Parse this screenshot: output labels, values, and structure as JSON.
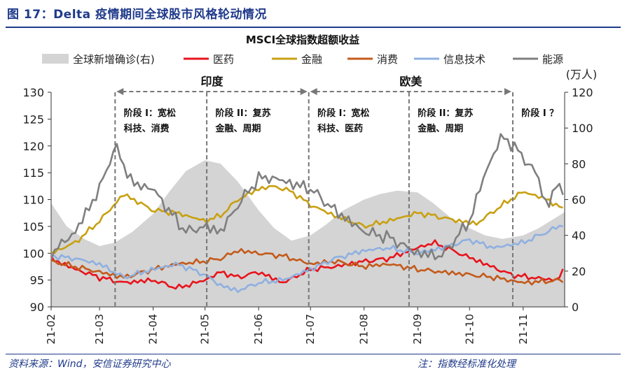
{
  "figure": {
    "title": "图 17：Delta 疫情期间全球股市风格轮动情况",
    "source": "资料来源：Wind，安信证券研究中心",
    "note": "注：指数经标准化处理"
  },
  "chart_data": {
    "type": "line",
    "title": "MSCI全球指数超额收益",
    "y_left": {
      "min": 90,
      "max": 130,
      "ticks": [
        90,
        95,
        100,
        105,
        110,
        115,
        120,
        125,
        130
      ]
    },
    "y_right": {
      "min": 0,
      "max": 120,
      "ticks": [
        0,
        20,
        40,
        60,
        80,
        100,
        120
      ],
      "unit": "(万人)"
    },
    "x_labels": [
      "21-02",
      "21-03",
      "21-04",
      "21-05",
      "21-06",
      "21-07",
      "21-08",
      "21-09",
      "21-10",
      "21-11"
    ],
    "x_start": "2021-02-01",
    "x_end": "2021-11-25",
    "series": [
      {
        "name": "全球新增确诊(右)",
        "type": "area",
        "axis": "right",
        "color": "#d4d4d4",
        "points": [
          [
            "2021-02-01",
            58
          ],
          [
            "2021-02-10",
            45
          ],
          [
            "2021-02-20",
            38
          ],
          [
            "2021-03-01",
            34
          ],
          [
            "2021-03-10",
            36
          ],
          [
            "2021-03-20",
            42
          ],
          [
            "2021-04-01",
            52
          ],
          [
            "2021-04-10",
            64
          ],
          [
            "2021-04-20",
            76
          ],
          [
            "2021-05-01",
            82
          ],
          [
            "2021-05-10",
            80
          ],
          [
            "2021-05-20",
            70
          ],
          [
            "2021-06-01",
            54
          ],
          [
            "2021-06-10",
            44
          ],
          [
            "2021-06-20",
            37
          ],
          [
            "2021-07-01",
            40
          ],
          [
            "2021-07-10",
            46
          ],
          [
            "2021-07-20",
            54
          ],
          [
            "2021-08-01",
            60
          ],
          [
            "2021-08-10",
            63
          ],
          [
            "2021-08-20",
            65
          ],
          [
            "2021-09-01",
            64
          ],
          [
            "2021-09-10",
            58
          ],
          [
            "2021-09-20",
            50
          ],
          [
            "2021-10-01",
            44
          ],
          [
            "2021-10-10",
            40
          ],
          [
            "2021-10-20",
            38
          ],
          [
            "2021-11-01",
            40
          ],
          [
            "2021-11-10",
            44
          ],
          [
            "2021-11-20",
            50
          ],
          [
            "2021-11-25",
            53
          ]
        ]
      },
      {
        "name": "医药",
        "type": "line",
        "axis": "left",
        "color": "#e8141c",
        "points": [
          [
            "2021-02-01",
            99
          ],
          [
            "2021-02-15",
            97
          ],
          [
            "2021-03-01",
            95.5
          ],
          [
            "2021-03-15",
            94.5
          ],
          [
            "2021-04-01",
            95
          ],
          [
            "2021-04-15",
            93.5
          ],
          [
            "2021-05-01",
            95
          ],
          [
            "2021-05-10",
            96.5
          ],
          [
            "2021-05-20",
            95.5
          ],
          [
            "2021-06-01",
            96.5
          ],
          [
            "2021-06-15",
            94.5
          ],
          [
            "2021-07-01",
            97
          ],
          [
            "2021-07-15",
            97.5
          ],
          [
            "2021-08-01",
            98.5
          ],
          [
            "2021-08-15",
            99
          ],
          [
            "2021-09-01",
            101
          ],
          [
            "2021-09-10",
            102
          ],
          [
            "2021-09-25",
            100
          ],
          [
            "2021-10-10",
            98
          ],
          [
            "2021-10-25",
            96
          ],
          [
            "2021-11-05",
            95.5
          ],
          [
            "2021-11-20",
            95
          ],
          [
            "2021-11-25",
            97
          ]
        ]
      },
      {
        "name": "金融",
        "type": "line",
        "axis": "left",
        "color": "#c8a011",
        "points": [
          [
            "2021-02-01",
            100
          ],
          [
            "2021-02-15",
            102
          ],
          [
            "2021-03-01",
            106
          ],
          [
            "2021-03-15",
            111
          ],
          [
            "2021-04-01",
            108
          ],
          [
            "2021-04-15",
            107.5
          ],
          [
            "2021-05-01",
            106
          ],
          [
            "2021-05-10",
            107
          ],
          [
            "2021-05-20",
            110
          ],
          [
            "2021-06-01",
            112
          ],
          [
            "2021-06-10",
            112.5
          ],
          [
            "2021-06-20",
            111.5
          ],
          [
            "2021-07-01",
            109
          ],
          [
            "2021-07-15",
            107
          ],
          [
            "2021-08-01",
            105
          ],
          [
            "2021-08-15",
            106
          ],
          [
            "2021-09-01",
            107.5
          ],
          [
            "2021-09-10",
            107
          ],
          [
            "2021-09-25",
            106
          ],
          [
            "2021-10-05",
            105.5
          ],
          [
            "2021-10-20",
            109
          ],
          [
            "2021-11-01",
            111.5
          ],
          [
            "2021-11-15",
            110
          ],
          [
            "2021-11-25",
            108
          ]
        ]
      },
      {
        "name": "消费",
        "type": "line",
        "axis": "left",
        "color": "#c45a1a",
        "points": [
          [
            "2021-02-01",
            98.5
          ],
          [
            "2021-02-15",
            97.5
          ],
          [
            "2021-03-01",
            96.5
          ],
          [
            "2021-03-15",
            95.5
          ],
          [
            "2021-04-01",
            97
          ],
          [
            "2021-04-15",
            98
          ],
          [
            "2021-05-01",
            98.5
          ],
          [
            "2021-05-10",
            99
          ],
          [
            "2021-05-20",
            100.5
          ],
          [
            "2021-06-01",
            100
          ],
          [
            "2021-06-15",
            99.5
          ],
          [
            "2021-07-01",
            98
          ],
          [
            "2021-07-15",
            98.5
          ],
          [
            "2021-08-01",
            97.5
          ],
          [
            "2021-08-15",
            98
          ],
          [
            "2021-09-01",
            97
          ],
          [
            "2021-09-15",
            96.5
          ],
          [
            "2021-10-01",
            96
          ],
          [
            "2021-10-15",
            95.5
          ],
          [
            "2021-11-01",
            94.5
          ],
          [
            "2021-11-25",
            95
          ]
        ]
      },
      {
        "name": "信息技术",
        "type": "line",
        "axis": "left",
        "color": "#8fb0e0",
        "points": [
          [
            "2021-02-01",
            99.5
          ],
          [
            "2021-02-15",
            99
          ],
          [
            "2021-03-01",
            98
          ],
          [
            "2021-03-15",
            95.5
          ],
          [
            "2021-04-01",
            97
          ],
          [
            "2021-04-15",
            98
          ],
          [
            "2021-05-01",
            96
          ],
          [
            "2021-05-10",
            94
          ],
          [
            "2021-05-20",
            93
          ],
          [
            "2021-06-01",
            94.5
          ],
          [
            "2021-06-15",
            95
          ],
          [
            "2021-07-01",
            97
          ],
          [
            "2021-07-15",
            99
          ],
          [
            "2021-08-01",
            100.5
          ],
          [
            "2021-08-15",
            101
          ],
          [
            "2021-09-01",
            100
          ],
          [
            "2021-09-15",
            101
          ],
          [
            "2021-10-01",
            102.5
          ],
          [
            "2021-10-15",
            101
          ],
          [
            "2021-11-01",
            102
          ],
          [
            "2021-11-15",
            104
          ],
          [
            "2021-11-25",
            105.5
          ]
        ]
      },
      {
        "name": "能源",
        "type": "line",
        "axis": "left",
        "color": "#7f7f7f",
        "points": [
          [
            "2021-02-01",
            100
          ],
          [
            "2021-02-15",
            104
          ],
          [
            "2021-03-01",
            112
          ],
          [
            "2021-03-10",
            120
          ],
          [
            "2021-03-20",
            113
          ],
          [
            "2021-04-01",
            112
          ],
          [
            "2021-04-10",
            108
          ],
          [
            "2021-04-20",
            104
          ],
          [
            "2021-05-01",
            105
          ],
          [
            "2021-05-10",
            104
          ],
          [
            "2021-05-20",
            109
          ],
          [
            "2021-06-01",
            114
          ],
          [
            "2021-06-10",
            114
          ],
          [
            "2021-06-20",
            113
          ],
          [
            "2021-07-01",
            112
          ],
          [
            "2021-07-15",
            108
          ],
          [
            "2021-08-01",
            104
          ],
          [
            "2021-08-15",
            103
          ],
          [
            "2021-09-01",
            100
          ],
          [
            "2021-09-15",
            99.5
          ],
          [
            "2021-10-01",
            106
          ],
          [
            "2021-10-10",
            115
          ],
          [
            "2021-10-20",
            122
          ],
          [
            "2021-11-01",
            118
          ],
          [
            "2021-11-10",
            114
          ],
          [
            "2021-11-15",
            108
          ],
          [
            "2021-11-20",
            113
          ],
          [
            "2021-11-25",
            111
          ]
        ]
      }
    ],
    "stage_lines": [
      "2021-03-10",
      "2021-05-02",
      "2021-06-30",
      "2021-08-27",
      "2021-10-26"
    ],
    "regions": [
      {
        "label": "印度",
        "start": "2021-03-10",
        "end": "2021-06-30"
      },
      {
        "label": "欧美",
        "start": "2021-06-30",
        "end": "2021-10-26"
      }
    ],
    "stage_labels": [
      {
        "lines": [
          "阶段 I：宽松",
          "科技、消费"
        ],
        "date": "2021-03-15"
      },
      {
        "lines": [
          "阶段 II：复苏",
          "金融、周期"
        ],
        "date": "2021-05-07"
      },
      {
        "lines": [
          "阶段 I：宽松",
          "科技、医药"
        ],
        "date": "2021-07-05"
      },
      {
        "lines": [
          "阶段 II：复苏",
          "金融、周期"
        ],
        "date": "2021-09-01"
      },
      {
        "lines": [
          "阶段 I ？"
        ],
        "date": "2021-10-31"
      }
    ]
  }
}
